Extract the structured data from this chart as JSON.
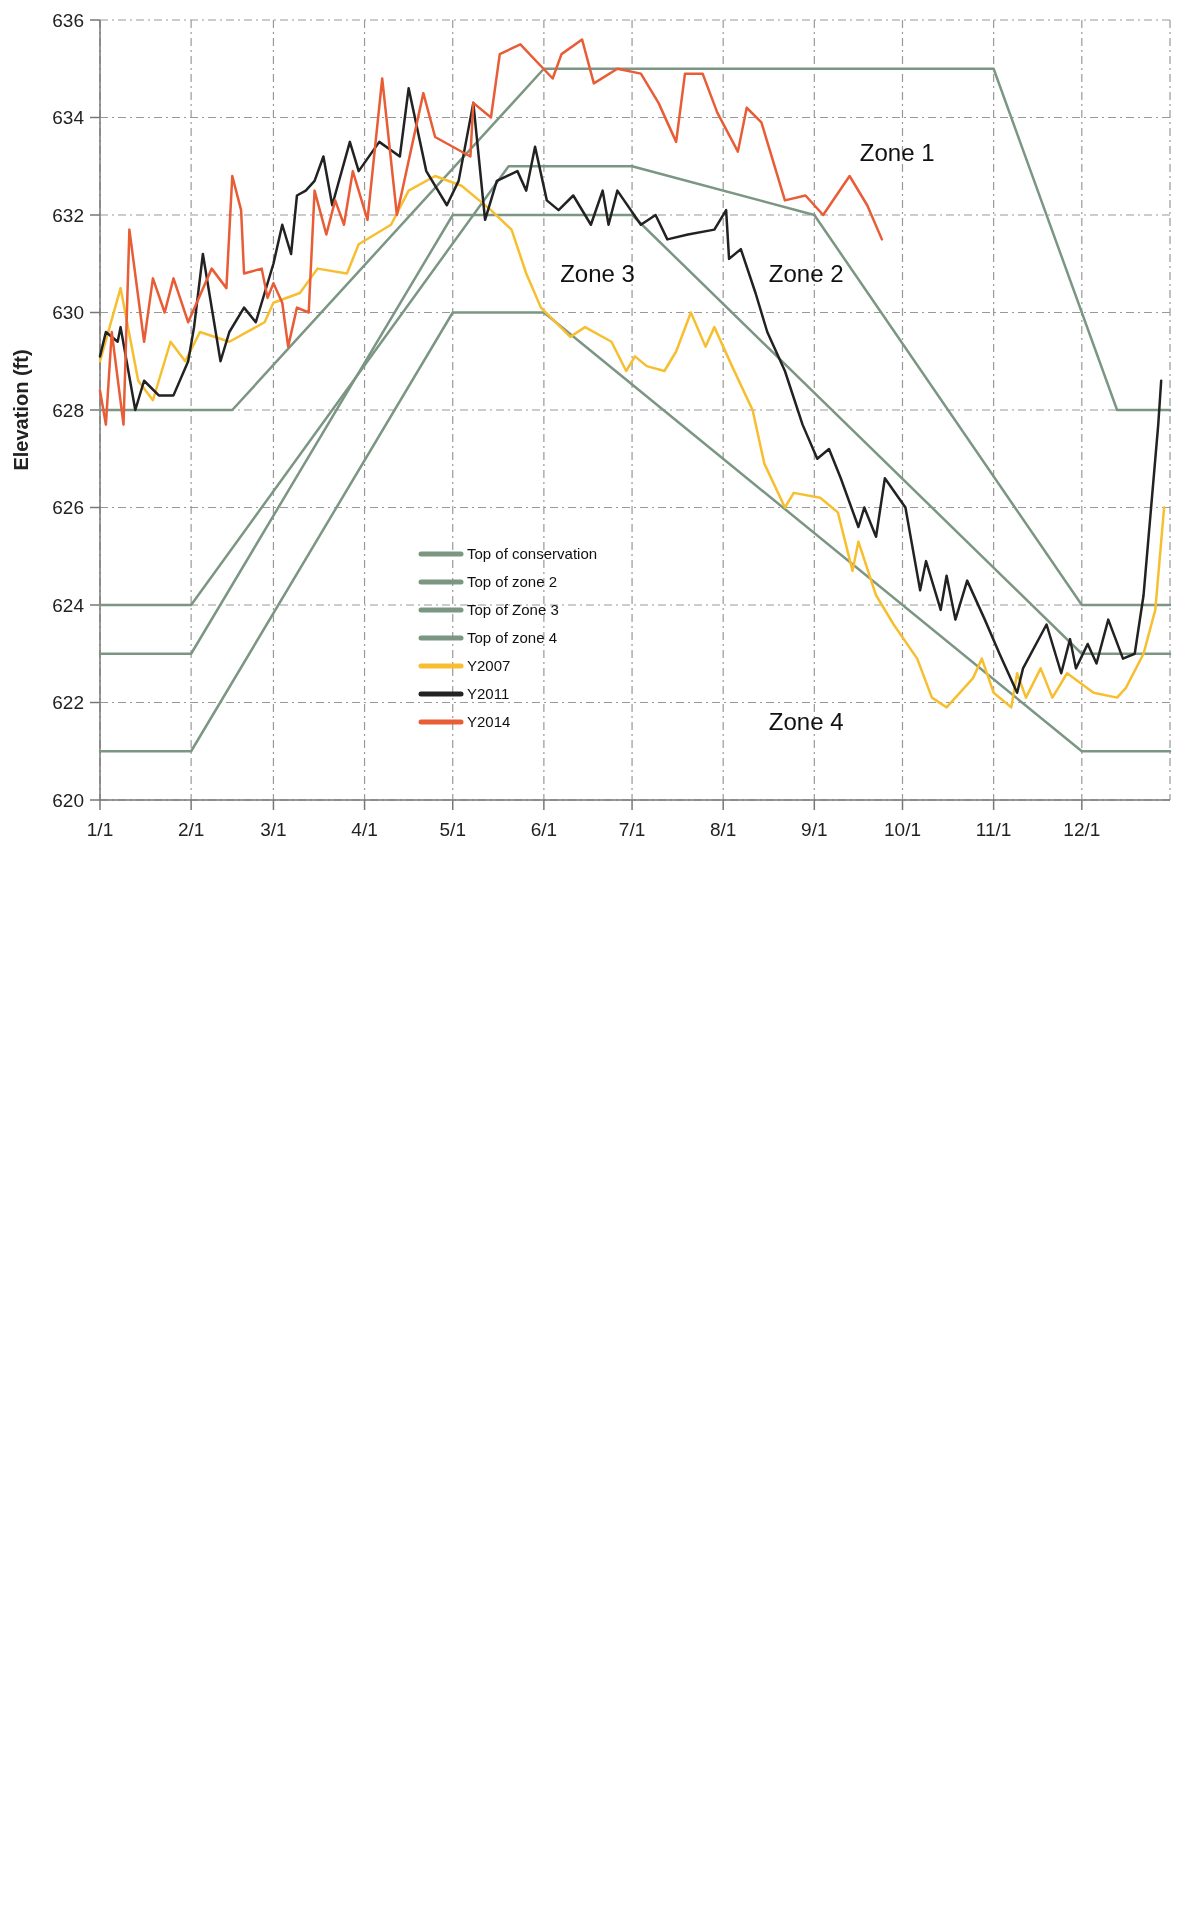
{
  "chart_data": {
    "type": "line",
    "ylabel": "Elevation (ft)",
    "xlim": [
      "--01-01",
      "--12-31"
    ],
    "ylim": [
      620,
      636
    ],
    "xticks": [
      {
        "value": "--01-01",
        "label": "1/1"
      },
      {
        "value": "--02-01",
        "label": "2/1"
      },
      {
        "value": "--03-01",
        "label": "3/1"
      },
      {
        "value": "--04-01",
        "label": "4/1"
      },
      {
        "value": "--05-01",
        "label": "5/1"
      },
      {
        "value": "--06-01",
        "label": "6/1"
      },
      {
        "value": "--07-01",
        "label": "7/1"
      },
      {
        "value": "--08-01",
        "label": "8/1"
      },
      {
        "value": "--09-01",
        "label": "9/1"
      },
      {
        "value": "--10-01",
        "label": "10/1"
      },
      {
        "value": "--11-01",
        "label": "11/1"
      },
      {
        "value": "--12-01",
        "label": "12/1"
      }
    ],
    "yticks": [
      620,
      622,
      624,
      626,
      628,
      630,
      632,
      634,
      636
    ],
    "grid": true,
    "legend": "bottom",
    "series": [
      {
        "name": "Top of conservation",
        "color": "#7b9683",
        "x": [
          "--01-01",
          "--02-15",
          "--06-01",
          "--11-01",
          "--12-13",
          "--12-31"
        ],
        "values": [
          628,
          628,
          635,
          635,
          628,
          628
        ]
      },
      {
        "name": "Top of zone 2",
        "color": "#7b9683",
        "x": [
          "--01-01",
          "--02-01",
          "--05-20",
          "--07-01",
          "--09-01",
          "--12-01",
          "--12-31"
        ],
        "values": [
          624,
          624,
          633,
          633,
          632,
          624,
          624
        ]
      },
      {
        "name": "Top of Zone 3",
        "color": "#7b9683",
        "x": [
          "--01-01",
          "--02-01",
          "--05-01",
          "--07-01",
          "--12-01",
          "--12-31"
        ],
        "values": [
          623,
          623,
          632,
          632,
          623,
          623
        ]
      },
      {
        "name": "Top of zone 4",
        "color": "#7b9683",
        "x": [
          "--01-01",
          "--02-01",
          "--05-01",
          "--06-01",
          "--12-01",
          "--12-31"
        ],
        "values": [
          621,
          621,
          630,
          630,
          621,
          621
        ]
      },
      {
        "name": "Y2007",
        "color": "#f7bf2f",
        "x": [
          "--01-01",
          "--01-08",
          "--01-14",
          "--01-19",
          "--01-25",
          "--01-30",
          "--02-04",
          "--02-14",
          "--02-26",
          "--03-01",
          "--03-10",
          "--03-16",
          "--03-26",
          "--03-30",
          "--04-10",
          "--04-16",
          "--04-25",
          "--05-04",
          "--05-14",
          "--05-21",
          "--05-26",
          "--05-31",
          "--06-10",
          "--06-15",
          "--06-24",
          "--06-29",
          "--07-02",
          "--07-06",
          "--07-12",
          "--07-16",
          "--07-21",
          "--07-26",
          "--07-29",
          "--08-04",
          "--08-11",
          "--08-15",
          "--08-22",
          "--08-25",
          "--09-03",
          "--09-09",
          "--09-14",
          "--09-16",
          "--09-22",
          "--09-28",
          "--10-06",
          "--10-11",
          "--10-16",
          "--10-25",
          "--10-28",
          "--11-01",
          "--11-07",
          "--11-09",
          "--11-12",
          "--11-17",
          "--11-21",
          "--11-26",
          "--12-05",
          "--12-13",
          "--12-16",
          "--12-22",
          "--12-26",
          "--12-29"
        ],
        "values": [
          629.0,
          630.5,
          628.6,
          628.2,
          629.4,
          629.0,
          629.6,
          629.4,
          629.8,
          630.2,
          630.4,
          630.9,
          630.8,
          631.4,
          631.8,
          632.5,
          632.8,
          632.6,
          632.1,
          631.7,
          630.8,
          630.1,
          629.5,
          629.7,
          629.4,
          628.8,
          629.1,
          628.9,
          628.8,
          629.2,
          630.0,
          629.3,
          629.7,
          628.9,
          628.0,
          626.9,
          626.0,
          626.3,
          626.2,
          625.9,
          624.7,
          625.3,
          624.2,
          623.6,
          622.9,
          622.1,
          621.9,
          622.5,
          622.9,
          622.2,
          621.9,
          622.6,
          622.1,
          622.7,
          622.1,
          622.6,
          622.2,
          622.1,
          622.3,
          623.0,
          623.9,
          626.0
        ]
      },
      {
        "name": "Y2011",
        "color": "#222222",
        "x": [
          "--01-01",
          "--01-03",
          "--01-07",
          "--01-08",
          "--01-13",
          "--01-16",
          "--01-21",
          "--01-26",
          "--01-31",
          "--02-02",
          "--02-05",
          "--02-11",
          "--02-14",
          "--02-19",
          "--02-23",
          "--03-01",
          "--03-04",
          "--03-07",
          "--03-09",
          "--03-12",
          "--03-15",
          "--03-18",
          "--03-21",
          "--03-27",
          "--03-30",
          "--04-06",
          "--04-13",
          "--04-16",
          "--04-22",
          "--04-29",
          "--05-03",
          "--05-08",
          "--05-12",
          "--05-16",
          "--05-23",
          "--05-26",
          "--05-29",
          "--06-02",
          "--06-06",
          "--06-11",
          "--06-17",
          "--06-21",
          "--06-23",
          "--06-26",
          "--07-04",
          "--07-09",
          "--07-13",
          "--07-20",
          "--07-29",
          "--08-02",
          "--08-03",
          "--08-07",
          "--08-12",
          "--08-16",
          "--08-22",
          "--08-28",
          "--09-02",
          "--09-06",
          "--09-10",
          "--09-16",
          "--09-18",
          "--09-22",
          "--09-25",
          "--10-02",
          "--10-07",
          "--10-09",
          "--10-14",
          "--10-16",
          "--10-19",
          "--10-23",
          "--10-29",
          "--11-03",
          "--11-09",
          "--11-11",
          "--11-19",
          "--11-24",
          "--11-27",
          "--11-29",
          "--12-03",
          "--12-06",
          "--12-10",
          "--12-15",
          "--12-19",
          "--12-22",
          "--12-27",
          "--12-28"
        ],
        "values": [
          629.1,
          629.6,
          629.4,
          629.7,
          628.0,
          628.6,
          628.3,
          628.3,
          629.0,
          629.7,
          631.2,
          629.0,
          629.6,
          630.1,
          629.8,
          631.0,
          631.8,
          631.2,
          632.4,
          632.5,
          632.7,
          633.2,
          632.2,
          633.5,
          632.9,
          633.5,
          633.2,
          634.6,
          632.9,
          632.2,
          632.7,
          634.3,
          631.9,
          632.7,
          632.9,
          632.5,
          633.4,
          632.3,
          632.1,
          632.4,
          631.8,
          632.5,
          631.8,
          632.5,
          631.8,
          632.0,
          631.5,
          631.6,
          631.7,
          632.1,
          631.1,
          631.3,
          630.4,
          629.6,
          628.8,
          627.7,
          627.0,
          627.2,
          626.6,
          625.6,
          626.0,
          625.4,
          626.6,
          626.0,
          624.3,
          624.9,
          623.9,
          624.6,
          623.7,
          624.5,
          623.7,
          623.0,
          622.2,
          622.7,
          623.6,
          622.6,
          623.3,
          622.7,
          623.2,
          622.8,
          623.7,
          622.9,
          623.0,
          624.2,
          627.7,
          628.6
        ]
      },
      {
        "name": "Y2014",
        "color": "#e85c36",
        "x": [
          "--01-01",
          "--01-03",
          "--01-05",
          "--01-09",
          "--01-11",
          "--01-16",
          "--01-19",
          "--01-23",
          "--01-26",
          "--01-31",
          "--02-08",
          "--02-13",
          "--02-15",
          "--02-18",
          "--02-19",
          "--02-25",
          "--02-27",
          "--03-01",
          "--03-04",
          "--03-06",
          "--03-09",
          "--03-13",
          "--03-15",
          "--03-19",
          "--03-22",
          "--03-25",
          "--03-28",
          "--04-02",
          "--04-07",
          "--04-12",
          "--04-21",
          "--04-25",
          "--05-07",
          "--05-08",
          "--05-14",
          "--05-17",
          "--05-24",
          "--06-04",
          "--06-07",
          "--06-14",
          "--06-18",
          "--06-26",
          "--07-04",
          "--07-10",
          "--07-16",
          "--07-19",
          "--07-25",
          "--07-30",
          "--08-06",
          "--08-09",
          "--08-14",
          "--08-22",
          "--08-29",
          "--09-04",
          "--09-13",
          "--09-19",
          "--09-24"
        ],
        "values": [
          628.4,
          627.7,
          629.6,
          627.7,
          631.7,
          629.4,
          630.7,
          630.0,
          630.7,
          629.8,
          630.9,
          630.5,
          632.8,
          632.1,
          630.8,
          630.9,
          630.3,
          630.6,
          630.2,
          629.3,
          630.1,
          630.0,
          632.5,
          631.6,
          632.3,
          631.8,
          632.9,
          631.9,
          634.8,
          632.0,
          634.5,
          633.6,
          633.2,
          634.3,
          634.0,
          635.3,
          635.5,
          634.8,
          635.3,
          635.6,
          634.7,
          635.0,
          634.9,
          634.3,
          633.5,
          634.9,
          634.9,
          634.1,
          633.3,
          634.2,
          633.9,
          632.3,
          632.4,
          632.0,
          632.8,
          632.2,
          631.5
        ]
      }
    ],
    "annotations": [
      "Zone 1",
      "Zone 2",
      "Zone 3",
      "Zone 4"
    ]
  }
}
